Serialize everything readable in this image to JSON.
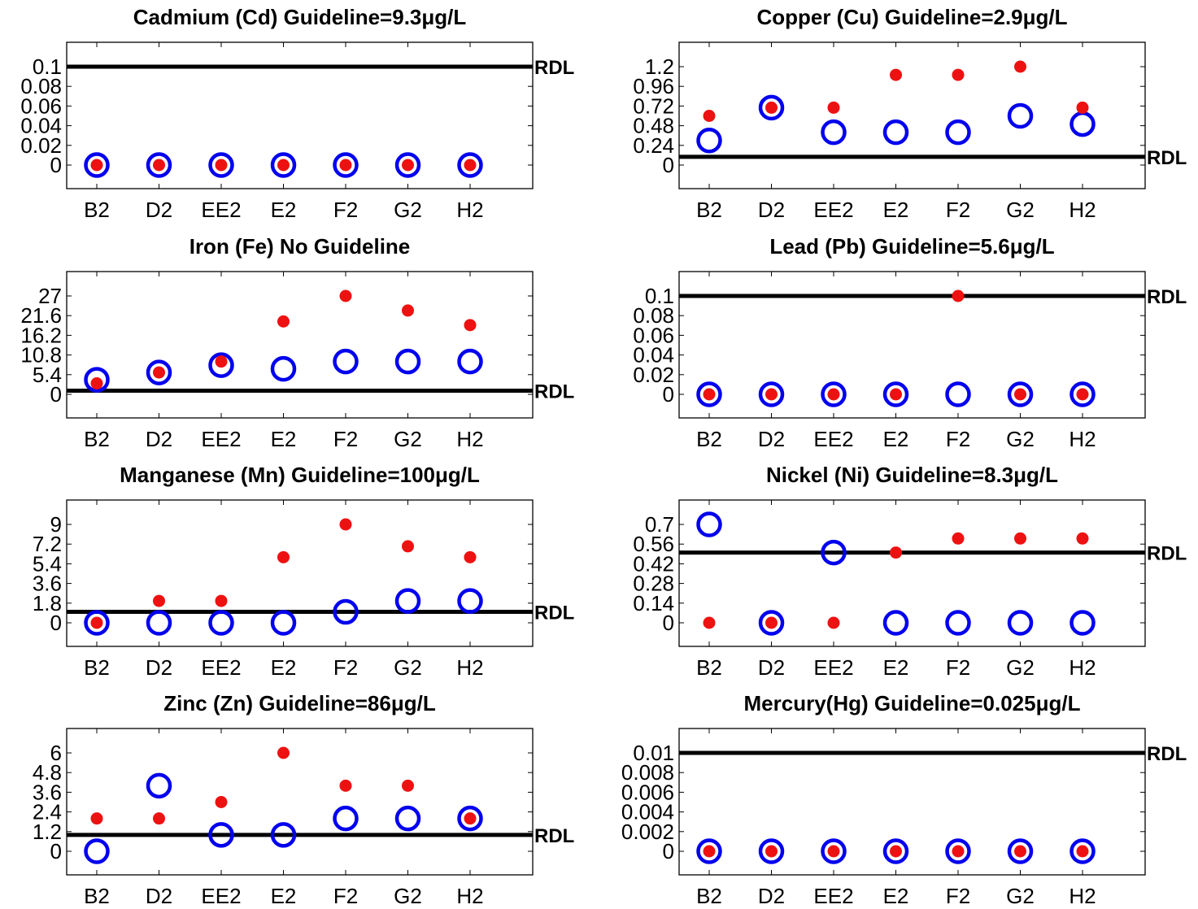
{
  "colors": {
    "open_marker": "#0000ee",
    "filled_marker": "#ee1111",
    "rdl_line": "#000000"
  },
  "chart_data": [
    {
      "type": "scatter",
      "title": "Cadmium (Cd)  Guideline=9.3μg/L",
      "categories": [
        "B2",
        "D2",
        "EE2",
        "E2",
        "F2",
        "G2",
        "H2"
      ],
      "yticks": [
        "0",
        "0.02",
        "0.04",
        "0.06",
        "0.08",
        "0.1"
      ],
      "ylim": [
        0,
        0.12
      ],
      "rdl": 0.1,
      "rdl_label": "RDL",
      "series": [
        {
          "marker": "open-circle",
          "values": [
            0,
            0,
            0,
            0,
            0,
            0,
            0
          ]
        },
        {
          "marker": "filled-dot",
          "values": [
            0,
            0,
            0,
            0,
            0,
            0,
            0
          ]
        }
      ]
    },
    {
      "type": "scatter",
      "title": "Copper (Cu)  Guideline=2.9μg/L",
      "categories": [
        "B2",
        "D2",
        "EE2",
        "E2",
        "F2",
        "G2",
        "H2"
      ],
      "yticks": [
        "0",
        "0.24",
        "0.48",
        "0.72",
        "0.96",
        "1.2"
      ],
      "ylim": [
        0,
        1.44
      ],
      "rdl": 0.1,
      "rdl_label": "RDL",
      "series": [
        {
          "marker": "open-circle",
          "values": [
            0.3,
            0.7,
            0.4,
            0.4,
            0.4,
            0.6,
            0.5
          ]
        },
        {
          "marker": "filled-dot",
          "values": [
            0.6,
            0.7,
            0.7,
            1.1,
            1.1,
            1.2,
            0.7
          ]
        }
      ]
    },
    {
      "type": "scatter",
      "title": "Iron (Fe) No Guideline",
      "categories": [
        "B2",
        "D2",
        "EE2",
        "E2",
        "F2",
        "G2",
        "H2"
      ],
      "yticks": [
        "0",
        "5.4",
        "10.8",
        "16.2",
        "21.6",
        "27"
      ],
      "ylim": [
        0,
        32.4
      ],
      "rdl": 1,
      "rdl_label": "RDL",
      "series": [
        {
          "marker": "open-circle",
          "values": [
            4,
            6,
            8,
            7,
            9,
            9,
            9
          ]
        },
        {
          "marker": "filled-dot",
          "values": [
            3,
            6,
            9,
            20,
            27,
            23,
            19
          ]
        }
      ]
    },
    {
      "type": "scatter",
      "title": "Lead (Pb)  Guideline=5.6μg/L",
      "categories": [
        "B2",
        "D2",
        "EE2",
        "E2",
        "F2",
        "G2",
        "H2"
      ],
      "yticks": [
        "0",
        "0.02",
        "0.04",
        "0.06",
        "0.08",
        "0.1"
      ],
      "ylim": [
        0,
        0.12
      ],
      "rdl": 0.1,
      "rdl_label": "RDL",
      "series": [
        {
          "marker": "open-circle",
          "values": [
            0,
            0,
            0,
            0,
            0,
            0,
            0
          ]
        },
        {
          "marker": "filled-dot",
          "values": [
            0,
            0,
            0,
            0,
            0.1,
            0,
            0
          ]
        }
      ]
    },
    {
      "type": "scatter",
      "title": "Manganese (Mn)  Guideline=100μg/L",
      "categories": [
        "B2",
        "D2",
        "EE2",
        "E2",
        "F2",
        "G2",
        "H2"
      ],
      "yticks": [
        "0",
        "1.8",
        "3.6",
        "5.4",
        "7.2",
        "9"
      ],
      "ylim": [
        0,
        10.8
      ],
      "rdl": 1,
      "rdl_label": "RDL",
      "series": [
        {
          "marker": "open-circle",
          "values": [
            0,
            0,
            0,
            0,
            1,
            2,
            2
          ]
        },
        {
          "marker": "filled-dot",
          "values": [
            0,
            2,
            2,
            6,
            9,
            7,
            6
          ]
        }
      ]
    },
    {
      "type": "scatter",
      "title": "Nickel (Ni)  Guideline=8.3μg/L",
      "categories": [
        "B2",
        "D2",
        "EE2",
        "E2",
        "F2",
        "G2",
        "H2"
      ],
      "yticks": [
        "0",
        "0.14",
        "0.28",
        "0.42",
        "0.56",
        "0.7"
      ],
      "ylim": [
        0,
        0.84
      ],
      "rdl": 0.5,
      "rdl_label": "RDL",
      "series": [
        {
          "marker": "open-circle",
          "values": [
            0.7,
            0,
            0.5,
            0,
            0,
            0,
            0
          ]
        },
        {
          "marker": "filled-dot",
          "values": [
            0,
            0,
            0,
            0.5,
            0.6,
            0.6,
            0.6
          ]
        }
      ]
    },
    {
      "type": "scatter",
      "title": "Zinc (Zn)  Guideline=86μg/L",
      "categories": [
        "B2",
        "D2",
        "EE2",
        "E2",
        "F2",
        "G2",
        "H2"
      ],
      "yticks": [
        "0",
        "1.2",
        "2.4",
        "3.6",
        "4.8",
        "6"
      ],
      "ylim": [
        0,
        7.2
      ],
      "rdl": 1,
      "rdl_label": "RDL",
      "series": [
        {
          "marker": "open-circle",
          "values": [
            0,
            4,
            1,
            1,
            2,
            2,
            2
          ]
        },
        {
          "marker": "filled-dot",
          "values": [
            2,
            2,
            3,
            6,
            4,
            4,
            2
          ]
        }
      ]
    },
    {
      "type": "scatter",
      "title": "Mercury(Hg)  Guideline=0.025μg/L",
      "categories": [
        "B2",
        "D2",
        "EE2",
        "E2",
        "F2",
        "G2",
        "H2"
      ],
      "yticks": [
        "0",
        "0.002",
        "0.004",
        "0.006",
        "0.008",
        "0.01"
      ],
      "ylim": [
        0,
        0.012
      ],
      "rdl": 0.01,
      "rdl_label": "RDL",
      "series": [
        {
          "marker": "open-circle",
          "values": [
            0,
            0,
            0,
            0,
            0,
            0,
            0
          ]
        },
        {
          "marker": "filled-dot",
          "values": [
            0,
            0,
            0,
            0,
            0,
            0,
            0
          ]
        }
      ]
    }
  ]
}
